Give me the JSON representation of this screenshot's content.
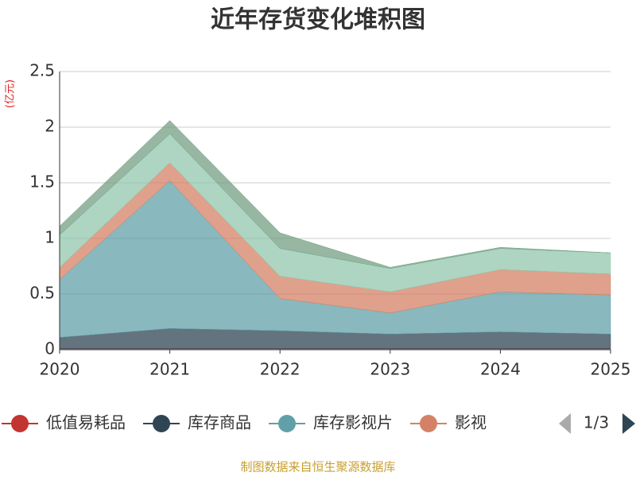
{
  "chart_data": {
    "type": "stacked-area",
    "title": "近年存货变化堆积图",
    "y_unit": "(亿元)",
    "categories": [
      "2020",
      "2021",
      "2022",
      "2023",
      "2024",
      "2025"
    ],
    "series": [
      {
        "name": "低值易耗品",
        "color": "#c23531",
        "values": [
          0.01,
          0.01,
          0.01,
          0.01,
          0.01,
          0.01
        ]
      },
      {
        "name": "库存商品",
        "color": "#2f4554",
        "values": [
          0.1,
          0.18,
          0.16,
          0.13,
          0.15,
          0.13
        ]
      },
      {
        "name": "库存影视片",
        "color": "#61a0a8",
        "values": [
          0.52,
          1.33,
          0.29,
          0.19,
          0.36,
          0.35
        ]
      },
      {
        "name": "影视",
        "color": "#d48265",
        "values": [
          0.11,
          0.16,
          0.2,
          0.19,
          0.2,
          0.19
        ]
      },
      {
        "color": "#91c7ae",
        "values": [
          0.29,
          0.26,
          0.25,
          0.21,
          0.19,
          0.19
        ]
      },
      {
        "color": "#749f83",
        "values": [
          0.08,
          0.12,
          0.14,
          0.01,
          0.01,
          0
        ]
      }
    ],
    "ylim": [
      0,
      2.5
    ],
    "yticks": [
      0,
      0.5,
      1,
      1.5,
      2,
      2.5
    ],
    "grid": true,
    "legend_page": "1/3",
    "source": "制图数据来自恒生聚源数据库"
  }
}
